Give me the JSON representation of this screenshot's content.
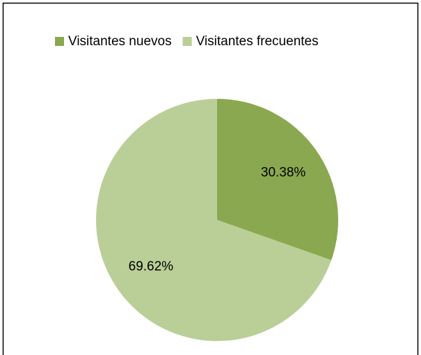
{
  "chart_data": {
    "type": "pie",
    "categories": [
      "Visitantes nuevos",
      "Visitantes frecuentes"
    ],
    "values": [
      30.38,
      69.62
    ],
    "value_labels": [
      "30.38%",
      "69.62%"
    ],
    "colors": [
      "#8aa84f",
      "#bacf98"
    ],
    "legend": "top"
  }
}
